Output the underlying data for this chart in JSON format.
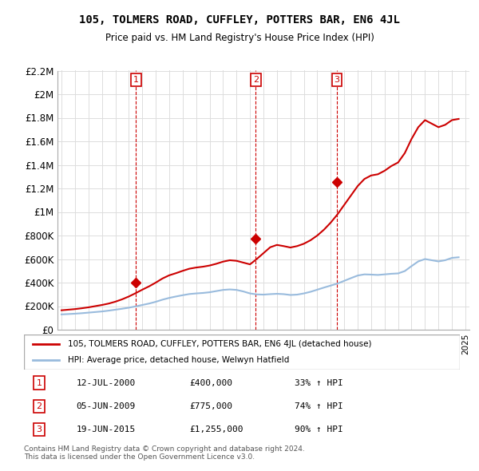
{
  "title": "105, TOLMERS ROAD, CUFFLEY, POTTERS BAR, EN6 4JL",
  "subtitle": "Price paid vs. HM Land Registry's House Price Index (HPI)",
  "sale_label": "105, TOLMERS ROAD, CUFFLEY, POTTERS BAR, EN6 4JL (detached house)",
  "hpi_label": "HPI: Average price, detached house, Welwyn Hatfield",
  "sale_color": "#cc0000",
  "hpi_color": "#99bbdd",
  "vline_color": "#cc0000",
  "marker_color": "#cc0000",
  "ylim": [
    0,
    2200000
  ],
  "yticks": [
    0,
    200000,
    400000,
    600000,
    800000,
    1000000,
    1200000,
    1400000,
    1600000,
    1800000,
    2000000,
    2200000
  ],
  "ytick_labels": [
    "£0",
    "£200K",
    "£400K",
    "£600K",
    "£800K",
    "£1M",
    "£1.2M",
    "£1.4M",
    "£1.6M",
    "£1.8M",
    "£2M",
    "£2.2M"
  ],
  "sale_dates": [
    2000.53,
    2009.43,
    2015.46
  ],
  "sale_prices": [
    400000,
    775000,
    1255000
  ],
  "sale_markers": [
    1,
    2,
    3
  ],
  "table_rows": [
    [
      "1",
      "12-JUL-2000",
      "£400,000",
      "33% ↑ HPI"
    ],
    [
      "2",
      "05-JUN-2009",
      "£775,000",
      "74% ↑ HPI"
    ],
    [
      "3",
      "19-JUN-2015",
      "£1,255,000",
      "90% ↑ HPI"
    ]
  ],
  "footer": "Contains HM Land Registry data © Crown copyright and database right 2024.\nThis data is licensed under the Open Government Licence v3.0.",
  "hpi_x": [
    1995,
    1995.5,
    1996,
    1996.5,
    1997,
    1997.5,
    1998,
    1998.5,
    1999,
    1999.5,
    2000,
    2000.5,
    2001,
    2001.5,
    2002,
    2002.5,
    2003,
    2003.5,
    2004,
    2004.5,
    2005,
    2005.5,
    2006,
    2006.5,
    2007,
    2007.5,
    2008,
    2008.5,
    2009,
    2009.5,
    2010,
    2010.5,
    2011,
    2011.5,
    2012,
    2012.5,
    2013,
    2013.5,
    2014,
    2014.5,
    2015,
    2015.5,
    2016,
    2016.5,
    2017,
    2017.5,
    2018,
    2018.5,
    2019,
    2019.5,
    2020,
    2020.5,
    2021,
    2021.5,
    2022,
    2022.5,
    2023,
    2023.5,
    2024,
    2024.5
  ],
  "hpi_y": [
    130000,
    133000,
    136000,
    140000,
    145000,
    150000,
    155000,
    162000,
    170000,
    178000,
    187000,
    198000,
    210000,
    222000,
    237000,
    255000,
    270000,
    282000,
    293000,
    303000,
    308000,
    312000,
    318000,
    328000,
    338000,
    342000,
    338000,
    325000,
    308000,
    300000,
    298000,
    302000,
    305000,
    302000,
    295000,
    298000,
    308000,
    322000,
    340000,
    358000,
    375000,
    392000,
    415000,
    438000,
    460000,
    470000,
    468000,
    465000,
    470000,
    475000,
    478000,
    498000,
    540000,
    580000,
    600000,
    590000,
    580000,
    590000,
    610000,
    615000
  ],
  "sale_x": [
    1995,
    1995.5,
    1996,
    1996.5,
    1997,
    1997.5,
    1998,
    1998.5,
    1999,
    1999.5,
    2000,
    2000.5,
    2001,
    2001.5,
    2002,
    2002.5,
    2003,
    2003.5,
    2004,
    2004.5,
    2005,
    2005.5,
    2006,
    2006.5,
    2007,
    2007.5,
    2008,
    2008.5,
    2009,
    2009.5,
    2010,
    2010.5,
    2011,
    2011.5,
    2012,
    2012.5,
    2013,
    2013.5,
    2014,
    2014.5,
    2015,
    2015.5,
    2016,
    2016.5,
    2017,
    2017.5,
    2018,
    2018.5,
    2019,
    2019.5,
    2020,
    2020.5,
    2021,
    2021.5,
    2022,
    2022.5,
    2023,
    2023.5,
    2024,
    2024.5
  ],
  "sale_y": [
    165000,
    170000,
    175000,
    182000,
    190000,
    200000,
    210000,
    222000,
    238000,
    258000,
    282000,
    310000,
    340000,
    368000,
    400000,
    435000,
    462000,
    480000,
    500000,
    518000,
    528000,
    535000,
    545000,
    560000,
    578000,
    590000,
    585000,
    570000,
    555000,
    600000,
    650000,
    700000,
    720000,
    710000,
    698000,
    710000,
    730000,
    760000,
    800000,
    850000,
    910000,
    980000,
    1060000,
    1140000,
    1220000,
    1280000,
    1310000,
    1320000,
    1350000,
    1390000,
    1420000,
    1500000,
    1620000,
    1720000,
    1780000,
    1750000,
    1720000,
    1740000,
    1780000,
    1790000
  ],
  "xlim": [
    1994.7,
    2025.3
  ],
  "xticks": [
    1995,
    1996,
    1997,
    1998,
    1999,
    2000,
    2001,
    2002,
    2003,
    2004,
    2005,
    2006,
    2007,
    2008,
    2009,
    2010,
    2011,
    2012,
    2013,
    2014,
    2015,
    2016,
    2017,
    2018,
    2019,
    2020,
    2021,
    2022,
    2023,
    2024,
    2025
  ]
}
